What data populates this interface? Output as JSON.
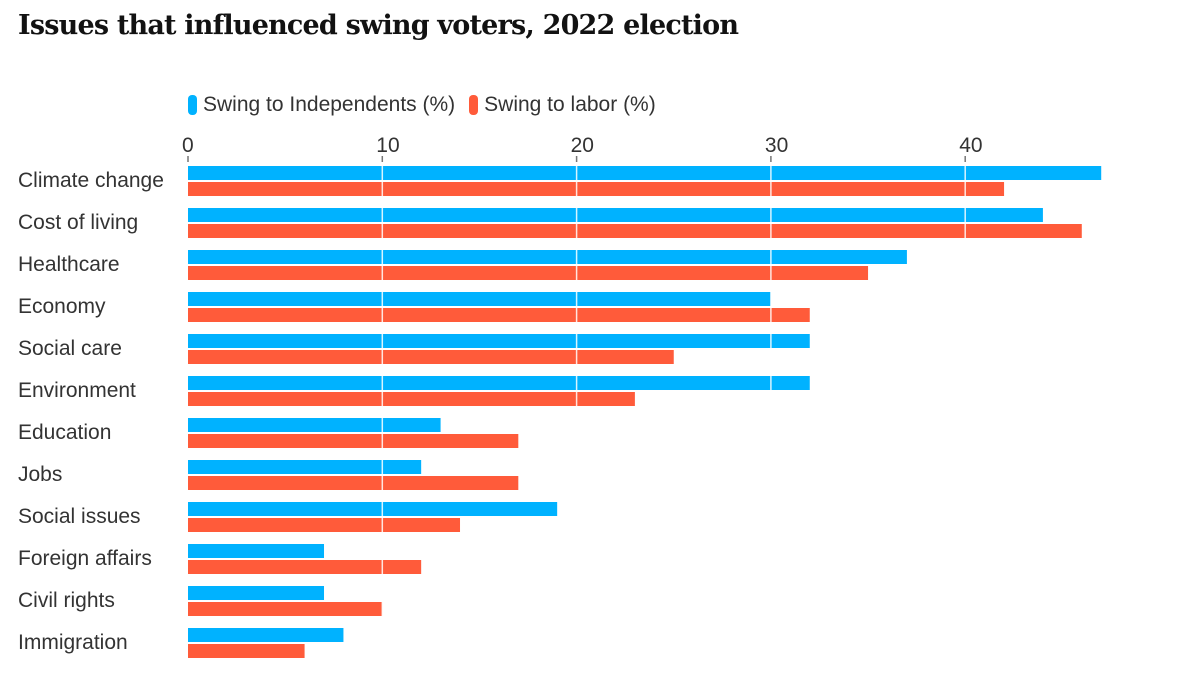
{
  "chart_data": {
    "type": "bar",
    "orientation": "horizontal",
    "title": "Issues that influenced swing voters, 2022 election",
    "xlabel": "",
    "ylabel": "",
    "xlim": [
      0,
      48
    ],
    "x_ticks": [
      0,
      10,
      20,
      30,
      40
    ],
    "x_tick_labels": [
      "0",
      "10",
      "20",
      "30",
      "40"
    ],
    "grid": true,
    "legend_position": "top-left",
    "categories": [
      "Climate change",
      "Cost of living",
      "Healthcare",
      "Economy",
      "Social care",
      "Environment",
      "Education",
      "Jobs",
      "Social issues",
      "Foreign affairs",
      "Civil rights",
      "Immigration"
    ],
    "series": [
      {
        "name": "Swing to Independents (%)",
        "color": "#00b2ff",
        "values": [
          47,
          44,
          37,
          30,
          32,
          32,
          13,
          12,
          19,
          7,
          7,
          8
        ]
      },
      {
        "name": "Swing to labor (%)",
        "color": "#ff5b3a",
        "values": [
          42,
          46,
          35,
          32,
          25,
          23,
          17,
          17,
          14,
          12,
          10,
          6
        ]
      }
    ]
  }
}
